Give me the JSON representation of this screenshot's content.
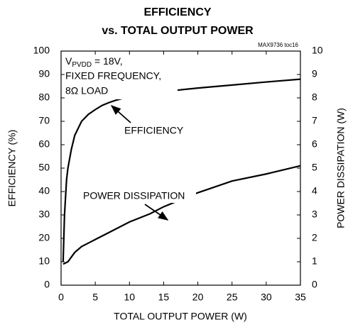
{
  "chart_data": {
    "type": "line",
    "title": [
      "EFFICIENCY",
      "vs. TOTAL OUTPUT POWER"
    ],
    "note": "MAX9736 toc16",
    "conditions": {
      "main": "V",
      "sub": "PVDD",
      "rest": " = 18V,",
      "lines": [
        "FIXED FREQUENCY,",
        "8Ω LOAD"
      ]
    },
    "xlabel": "TOTAL OUTPUT POWER (W)",
    "ylabel": "EFFICIENCY (%)",
    "y2label": "POWER DISSIPATION (W)",
    "xlim": [
      0,
      35
    ],
    "xticks": [
      0,
      5,
      10,
      15,
      20,
      25,
      30,
      35
    ],
    "ylim": [
      0,
      100
    ],
    "yticks": [
      0,
      10,
      20,
      30,
      40,
      50,
      60,
      70,
      80,
      90,
      100
    ],
    "y2lim": [
      0,
      10
    ],
    "y2ticks": [
      0,
      1,
      2,
      3,
      4,
      5,
      6,
      7,
      8,
      9,
      10
    ],
    "grid": false,
    "series": [
      {
        "name": "EFFICIENCY",
        "color": "#000000",
        "axis": "y",
        "x": [
          0.3,
          0.5,
          0.8,
          1,
          1.5,
          2,
          3,
          4,
          5,
          6,
          7,
          8,
          10,
          12,
          14,
          16,
          20,
          25,
          30,
          35
        ],
        "values": [
          10,
          30,
          45,
          50,
          58,
          64,
          70,
          73,
          75,
          76.8,
          78,
          79,
          80.5,
          81.5,
          82.5,
          83,
          84.2,
          85.5,
          86.8,
          88
        ]
      },
      {
        "name": "POWER DISSIPATION",
        "color": "#000000",
        "axis": "y2",
        "x": [
          0.3,
          1,
          2,
          3,
          5,
          7,
          10,
          13,
          15,
          20,
          25,
          30,
          35
        ],
        "values": [
          0.9,
          1.0,
          1.4,
          1.65,
          1.95,
          2.25,
          2.7,
          3.05,
          3.35,
          3.95,
          4.45,
          4.75,
          5.1
        ]
      }
    ]
  }
}
